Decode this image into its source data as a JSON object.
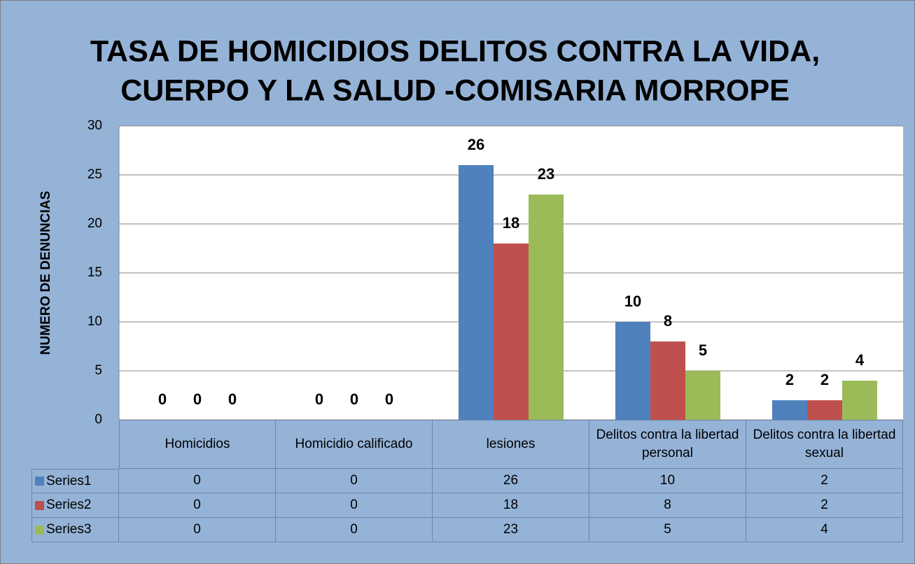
{
  "chart_data": {
    "type": "bar",
    "title": [
      "TASA DE HOMICIDIOS DELITOS CONTRA LA VIDA,",
      "CUERPO Y LA SALUD -COMISARIA MORROPE"
    ],
    "y_label": "NUMERO DE DENUNCIAS",
    "categories": [
      "Homicidios",
      "Homicidio calificado",
      "lesiones",
      "Delitos contra la libertad personal",
      "Delitos contra la libertad sexual"
    ],
    "series": [
      {
        "name": "Series1",
        "color": "#4f81bd",
        "values": [
          0,
          0,
          26,
          10,
          2
        ]
      },
      {
        "name": "Series2",
        "color": "#c0504d",
        "values": [
          0,
          0,
          18,
          8,
          2
        ]
      },
      {
        "name": "Series3",
        "color": "#9bbb59",
        "values": [
          0,
          0,
          23,
          5,
          4
        ]
      }
    ],
    "ylim": [
      0,
      30
    ],
    "yticks": [
      0,
      5,
      10,
      15,
      20,
      25,
      30
    ],
    "grid": true,
    "data_table": true
  }
}
